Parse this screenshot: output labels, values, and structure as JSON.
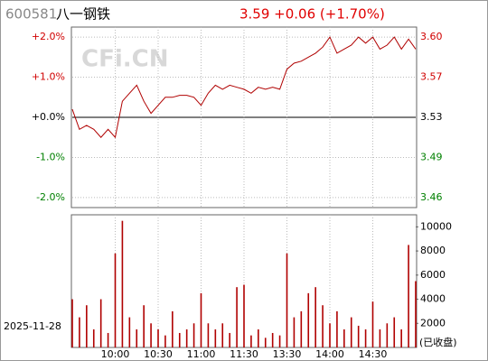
{
  "header": {
    "code": "600581",
    "name": "八一钢铁",
    "quote": "3.59 +0.06 (+1.70%)"
  },
  "watermark": "CFi.CN",
  "date": "2025-11-28",
  "status": "(已收盘)",
  "chart_data": [
    {
      "type": "line",
      "color": "#b00000",
      "x": [
        "09:30",
        "09:35",
        "09:40",
        "09:45",
        "09:50",
        "09:55",
        "10:00",
        "10:05",
        "10:10",
        "10:15",
        "10:20",
        "10:25",
        "10:30",
        "10:35",
        "10:40",
        "10:45",
        "10:50",
        "10:55",
        "11:00",
        "11:05",
        "11:10",
        "11:15",
        "11:20",
        "11:25",
        "11:30",
        "13:05",
        "13:10",
        "13:15",
        "13:20",
        "13:25",
        "13:30",
        "13:35",
        "13:40",
        "13:45",
        "13:50",
        "13:55",
        "14:00",
        "14:05",
        "14:10",
        "14:15",
        "14:20",
        "14:25",
        "14:30",
        "14:35",
        "14:40",
        "14:45",
        "14:50",
        "14:55",
        "15:00"
      ],
      "values": [
        0.2,
        -0.3,
        -0.2,
        -0.3,
        -0.5,
        -0.3,
        -0.5,
        0.4,
        0.6,
        0.8,
        0.4,
        0.1,
        0.3,
        0.5,
        0.5,
        0.55,
        0.55,
        0.5,
        0.3,
        0.6,
        0.8,
        0.7,
        0.8,
        0.75,
        0.7,
        0.6,
        0.75,
        0.7,
        0.75,
        0.7,
        1.2,
        1.35,
        1.4,
        1.5,
        1.6,
        1.75,
        2.0,
        1.6,
        1.7,
        1.8,
        2.0,
        1.85,
        2.0,
        1.7,
        1.8,
        2.0,
        1.7,
        1.95,
        1.7
      ],
      "ylim": [
        -2.25,
        2.25
      ],
      "yticks": [
        {
          "value": 2,
          "label": "+2.0%"
        },
        {
          "value": 1,
          "label": "+1.0%"
        },
        {
          "value": 0,
          "label": "+0.0%"
        },
        {
          "value": -1,
          "label": "-1.0%"
        },
        {
          "value": -2,
          "label": "-2.0%"
        }
      ],
      "y2lim": [
        3.4506,
        3.6094
      ],
      "y2ticks": [
        {
          "value": 3.6006,
          "label": "3.60"
        },
        {
          "value": 3.5653,
          "label": "3.57"
        },
        {
          "value": 3.53,
          "label": "3.53"
        },
        {
          "value": 3.4947,
          "label": "3.49"
        },
        {
          "value": 3.4594,
          "label": "3.46"
        }
      ],
      "xticks": [
        "10:00",
        "10:30",
        "11:00",
        "11:30",
        "13:30",
        "14:00",
        "14:30"
      ],
      "grid": true
    },
    {
      "type": "bar",
      "color": "#b00000",
      "x": [
        "09:30",
        "09:35",
        "09:40",
        "09:45",
        "09:50",
        "09:55",
        "10:00",
        "10:05",
        "10:10",
        "10:15",
        "10:20",
        "10:25",
        "10:30",
        "10:35",
        "10:40",
        "10:45",
        "10:50",
        "10:55",
        "11:00",
        "11:05",
        "11:10",
        "11:15",
        "11:20",
        "11:25",
        "11:30",
        "13:05",
        "13:10",
        "13:15",
        "13:20",
        "13:25",
        "13:30",
        "13:35",
        "13:40",
        "13:45",
        "13:50",
        "13:55",
        "14:00",
        "14:05",
        "14:10",
        "14:15",
        "14:20",
        "14:25",
        "14:30",
        "14:35",
        "14:40",
        "14:45",
        "14:50",
        "14:55",
        "15:00"
      ],
      "values": [
        4000,
        2500,
        3500,
        1500,
        4000,
        1200,
        7800,
        10500,
        2500,
        1500,
        3500,
        2000,
        1500,
        1000,
        3000,
        1200,
        1500,
        2000,
        4500,
        2000,
        1500,
        2000,
        1200,
        5000,
        5200,
        1000,
        1500,
        800,
        1200,
        1000,
        7800,
        2500,
        3000,
        4500,
        5000,
        3500,
        2000,
        3000,
        1500,
        2500,
        1800,
        1500,
        3800,
        1500,
        2000,
        2500,
        1500,
        8500,
        5500
      ],
      "ylim": [
        0,
        11000
      ],
      "yticks": [
        10000,
        8000,
        6000,
        4000,
        2000
      ],
      "xticks": [
        "10:00",
        "10:30",
        "11:00",
        "11:30",
        "13:30",
        "14:00",
        "14:30"
      ],
      "grid": true
    }
  ]
}
